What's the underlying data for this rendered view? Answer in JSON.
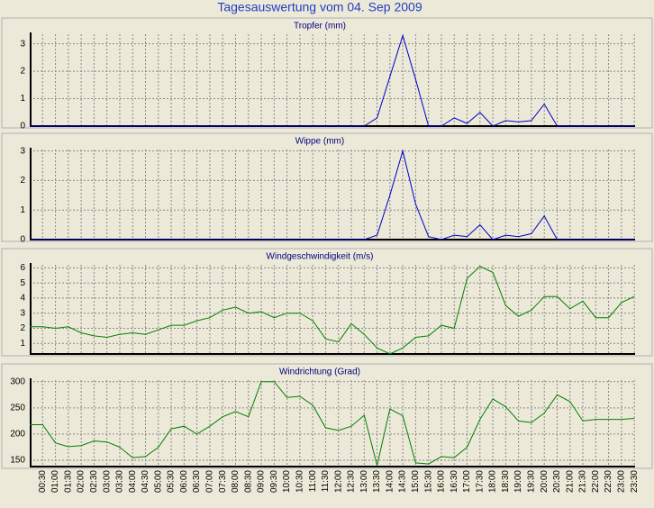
{
  "title": "Tagesauswertung vom 04. Sep 2009",
  "chart_data": [
    {
      "type": "line",
      "title": "Tropfer (mm)",
      "color": "#0000cc",
      "ylim": [
        0,
        3.35
      ],
      "yticks": [
        0,
        1,
        2,
        3
      ],
      "grid": true,
      "values": [
        0,
        0,
        0,
        0,
        0,
        0,
        0,
        0,
        0,
        0,
        0,
        0,
        0,
        0,
        0,
        0,
        0,
        0,
        0,
        0,
        0,
        0,
        0,
        0,
        0,
        0,
        0,
        0.3,
        1.8,
        3.3,
        1.7,
        0,
        0,
        0.3,
        0.1,
        0.5,
        0,
        0.2,
        0.15,
        0.2,
        0.8,
        0,
        0,
        0,
        0,
        0,
        0,
        0
      ]
    },
    {
      "type": "line",
      "title": "Wippe (mm)",
      "color": "#0000cc",
      "ylim": [
        0,
        3.05
      ],
      "yticks": [
        0,
        1,
        2,
        3
      ],
      "grid": true,
      "values": [
        0,
        0,
        0,
        0,
        0,
        0,
        0,
        0,
        0,
        0,
        0,
        0,
        0,
        0,
        0,
        0,
        0,
        0,
        0,
        0,
        0,
        0,
        0,
        0,
        0,
        0,
        0,
        0.15,
        1.5,
        3.0,
        1.2,
        0.1,
        0,
        0.15,
        0.1,
        0.5,
        0,
        0.15,
        0.1,
        0.2,
        0.8,
        0,
        0,
        0,
        0,
        0,
        0,
        0
      ]
    },
    {
      "type": "line",
      "title": "Windgeschwindigkeit (m/s)",
      "color": "#008000",
      "ylim": [
        0.3,
        6.2
      ],
      "yticks": [
        1,
        2,
        3,
        4,
        5,
        6
      ],
      "grid": true,
      "values": [
        2.1,
        2.1,
        2.0,
        2.1,
        1.7,
        1.5,
        1.4,
        1.6,
        1.7,
        1.6,
        1.9,
        2.2,
        2.2,
        2.5,
        2.7,
        3.2,
        3.4,
        3.0,
        3.1,
        2.7,
        3.0,
        3.0,
        2.5,
        1.3,
        1.1,
        2.3,
        1.6,
        0.7,
        0.3,
        0.7,
        1.4,
        1.5,
        2.2,
        2.0,
        5.3,
        6.1,
        5.7,
        3.5,
        2.8,
        3.2,
        4.1,
        4.1,
        3.3,
        3.8,
        2.7,
        2.7,
        3.7,
        4.1
      ]
    },
    {
      "type": "line",
      "title": "Windrichtung (Grad)",
      "color": "#008000",
      "ylim": [
        138,
        303
      ],
      "yticks": [
        150,
        200,
        250,
        300
      ],
      "grid": true,
      "categories": [
        null,
        "00:30",
        "01:00",
        "01:30",
        "02:00",
        "02:30",
        "03:00",
        "03:30",
        "04:00",
        "04:30",
        "05:00",
        "05:30",
        "06:00",
        "06:30",
        "07:00",
        "07:30",
        "08:00",
        "08:30",
        "09:00",
        "09:30",
        "10:00",
        "10:30",
        "11:00",
        "11:30",
        "12:00",
        "12:30",
        "13:00",
        "13:30",
        "14:00",
        "14:30",
        "15:00",
        "15:30",
        "16:00",
        "16:30",
        "17:00",
        "17:30",
        "18:00",
        "18:30",
        "19:00",
        "19:30",
        "20:00",
        "20:30",
        "21:00",
        "21:30",
        "22:00",
        "22:30",
        "23:00",
        "23:30"
      ],
      "values": [
        218,
        218,
        183,
        176,
        178,
        187,
        185,
        175,
        155,
        157,
        175,
        210,
        215,
        200,
        215,
        233,
        243,
        233,
        300,
        300,
        270,
        272,
        255,
        212,
        207,
        215,
        236,
        140,
        248,
        235,
        145,
        143,
        157,
        155,
        175,
        228,
        267,
        252,
        225,
        222,
        240,
        275,
        262,
        225,
        228,
        228,
        228,
        230
      ]
    }
  ]
}
